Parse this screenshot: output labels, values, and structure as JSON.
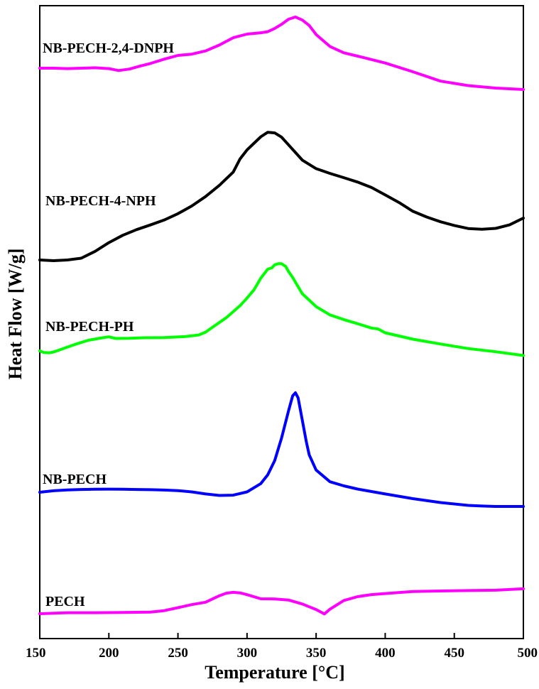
{
  "chart_data": {
    "type": "line",
    "xlabel": "Temperature [°C]",
    "ylabel": "Heat Flow [W/g]",
    "xlim": [
      150,
      500
    ],
    "xticks": [
      150,
      200,
      250,
      300,
      350,
      400,
      450,
      500
    ],
    "y_tick_labels": "none",
    "grid": false,
    "legend": "none (series labeled directly on plot)",
    "series": [
      {
        "name": "NB-PECH-2,4-DNPH",
        "color": "#ff00ff",
        "x": [
          150,
          160,
          170,
          180,
          190,
          200,
          207,
          215,
          222,
          230,
          240,
          250,
          260,
          270,
          280,
          290,
          300,
          310,
          315,
          320,
          325,
          330,
          335,
          340,
          345,
          350,
          360,
          370,
          380,
          400,
          420,
          440,
          460,
          480,
          500
        ],
        "y": [
          20,
          20,
          19.6,
          20,
          20.4,
          19.6,
          17.8,
          19.2,
          21.8,
          24.4,
          28.5,
          32,
          33.2,
          36.2,
          41.7,
          48.6,
          52,
          53.3,
          54.3,
          57.3,
          61.2,
          65.9,
          68.1,
          65.2,
          60.1,
          51.6,
          40.4,
          34.5,
          31.3,
          24.9,
          16.7,
          7.9,
          3.7,
          1.3,
          0
        ]
      },
      {
        "name": "NB-PECH-4-NPH",
        "color": "#000000",
        "x": [
          150,
          160,
          170,
          180,
          190,
          200,
          210,
          220,
          230,
          240,
          250,
          260,
          270,
          280,
          290,
          295,
          300,
          310,
          315,
          320,
          325,
          330,
          340,
          350,
          360,
          370,
          380,
          390,
          400,
          410,
          420,
          430,
          440,
          450,
          460,
          470,
          480,
          490,
          500
        ],
        "y": [
          0,
          -0.8,
          0,
          2.1,
          10.1,
          20.3,
          28.9,
          35.6,
          41.1,
          46.8,
          54.3,
          63.3,
          74.4,
          87.6,
          103.1,
          118.7,
          129.2,
          144.6,
          149.8,
          149.1,
          144.1,
          135.2,
          117.2,
          107.2,
          101.6,
          96.6,
          91.4,
          85.1,
          76.3,
          67.4,
          57.2,
          50.4,
          44.8,
          40.5,
          36.9,
          36.1,
          37.1,
          41.2,
          49.2
        ]
      },
      {
        "name": "NB-PECH-PH",
        "color": "#00ff00",
        "x": [
          150,
          153,
          157,
          160,
          165,
          175,
          185,
          195,
          200,
          205,
          215,
          225,
          240,
          255,
          265,
          270,
          275,
          285,
          295,
          300,
          305,
          310,
          315,
          318,
          320,
          323,
          325,
          328,
          330,
          333,
          335,
          340,
          350,
          360,
          370,
          380,
          390,
          395,
          400,
          420,
          440,
          460,
          480,
          500
        ],
        "y": [
          2,
          -0.3,
          -0.7,
          0.5,
          4,
          11,
          17.2,
          20.8,
          22.2,
          19.9,
          20.1,
          20.9,
          21.2,
          22.5,
          24.9,
          29,
          36,
          49.8,
          67,
          78,
          89.7,
          106.6,
          119.4,
          121.4,
          125.7,
          127.4,
          127.2,
          123.4,
          116.3,
          107.5,
          100.7,
          84.2,
          65.7,
          53.8,
          47,
          41.1,
          34.9,
          33.5,
          28.1,
          18.9,
          11.9,
          5.4,
          0.8,
          -4.6
        ]
      },
      {
        "name": "NB-PECH",
        "color": "#0000ff",
        "x": [
          150,
          160,
          170,
          180,
          190,
          200,
          210,
          220,
          230,
          240,
          250,
          260,
          270,
          280,
          290,
          300,
          310,
          315,
          320,
          325,
          330,
          333,
          335,
          337,
          340,
          343,
          345,
          350,
          360,
          370,
          380,
          400,
          420,
          440,
          460,
          470,
          480,
          500
        ],
        "y": [
          0,
          1.8,
          2.9,
          3.4,
          3.7,
          3.8,
          3.7,
          3.4,
          3.1,
          2.7,
          2,
          0.4,
          -2.1,
          -3.9,
          -3.6,
          0.4,
          10.6,
          21.3,
          38.7,
          66.4,
          99.3,
          118,
          121.8,
          115.6,
          88.2,
          61.1,
          45.8,
          27.2,
          12.9,
          7.8,
          3.9,
          -2.1,
          -7.8,
          -12.6,
          -16.1,
          -16.9,
          -17.4,
          -17.4
        ]
      },
      {
        "name": "PECH",
        "color": "#ff00ff",
        "x": [
          150,
          170,
          190,
          210,
          230,
          240,
          250,
          260,
          270,
          280,
          285,
          290,
          295,
          300,
          310,
          320,
          330,
          340,
          350,
          356,
          360,
          370,
          380,
          390,
          400,
          420,
          440,
          460,
          480,
          500
        ],
        "y": [
          0,
          1.4,
          1.4,
          1.8,
          2.2,
          4.3,
          8.5,
          12.8,
          16.2,
          25.3,
          28.9,
          30.1,
          29.3,
          26.8,
          21,
          20.8,
          19.3,
          13.7,
          5.9,
          -0.3,
          6.3,
          18.6,
          24,
          26.9,
          28.4,
          31.3,
          32,
          32.6,
          33.1,
          35.1
        ]
      }
    ]
  }
}
